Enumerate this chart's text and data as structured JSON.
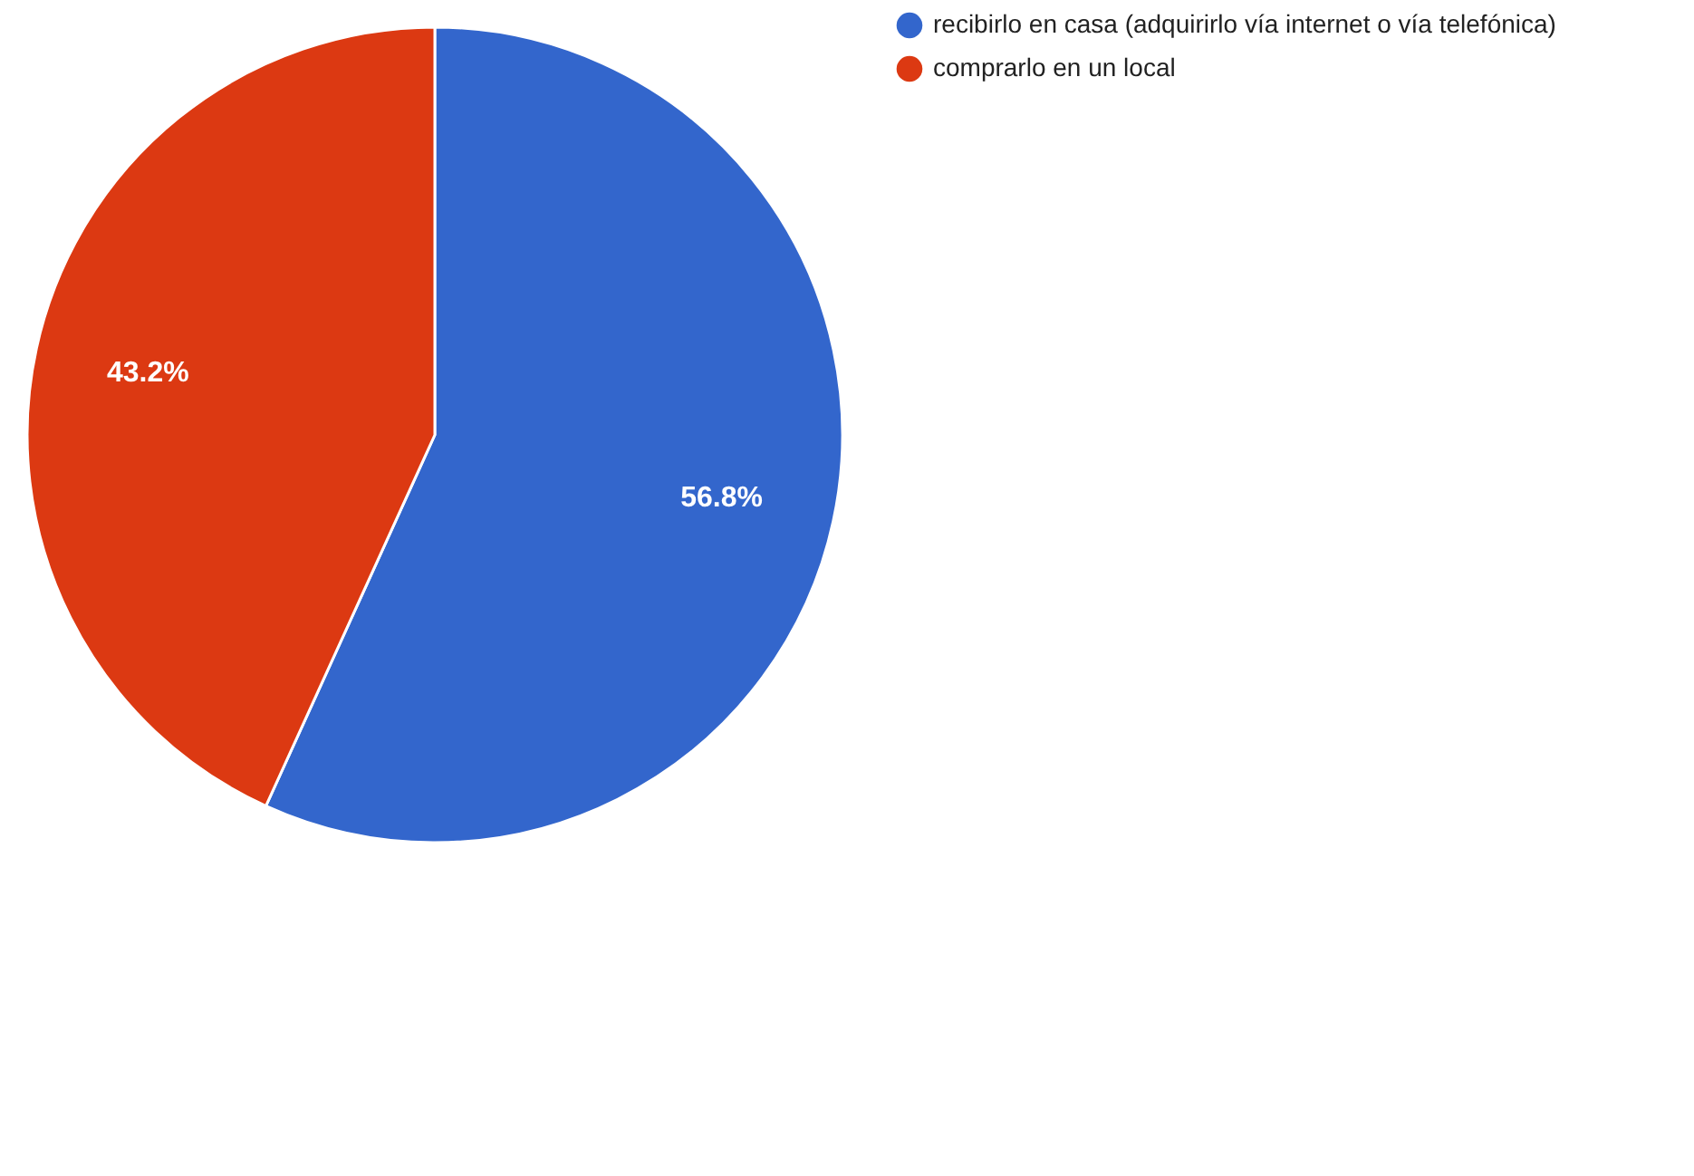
{
  "chart_data": {
    "type": "pie",
    "categories": [
      "recibirlo en casa (adquirirlo vía internet o vía telefónica)",
      "comprarlo en un local"
    ],
    "values": [
      56.8,
      43.2
    ],
    "colors": [
      "#3366cc",
      "#dc3912"
    ],
    "value_labels": [
      "56.8%",
      "43.2%"
    ],
    "legend": "right"
  }
}
